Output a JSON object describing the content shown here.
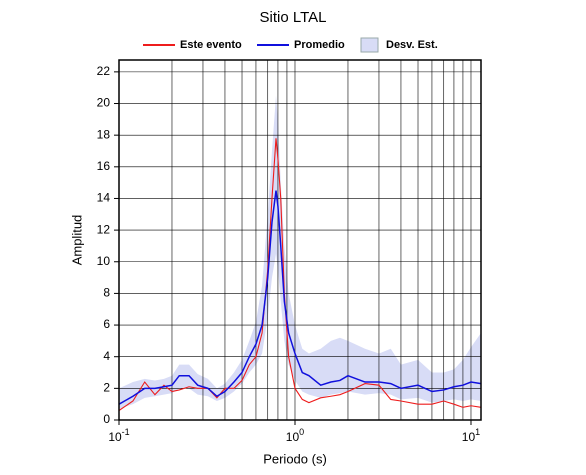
{
  "chart_data": {
    "type": "line",
    "title": "Sitio LTAL",
    "x_label": "Periodo (s)",
    "y_label": "Amplitud",
    "xscale": "log",
    "x": [
      0.1,
      0.12,
      0.14,
      0.16,
      0.18,
      0.2,
      0.22,
      0.25,
      0.28,
      0.32,
      0.36,
      0.4,
      0.45,
      0.5,
      0.55,
      0.6,
      0.65,
      0.7,
      0.74,
      0.78,
      0.8,
      0.83,
      0.87,
      0.92,
      1.0,
      1.1,
      1.2,
      1.4,
      1.6,
      1.8,
      2.0,
      2.5,
      3.0,
      3.5,
      4,
      5,
      6,
      7,
      8,
      9,
      10,
      11.4
    ],
    "series": [
      {
        "name": "Este evento",
        "color": "#ee1c1c",
        "values": [
          0.6,
          1.2,
          2.4,
          1.6,
          2.2,
          1.8,
          1.9,
          2.1,
          2.0,
          2.0,
          1.4,
          2.0,
          2.0,
          2.5,
          3.5,
          4.0,
          5.5,
          9.5,
          14,
          17.8,
          16.5,
          14,
          8,
          4,
          2.0,
          1.3,
          1.1,
          1.4,
          1.5,
          1.6,
          1.8,
          2.3,
          2.2,
          1.3,
          1.2,
          1.0,
          1.0,
          1.2,
          1.0,
          0.8,
          0.9,
          0.8
        ]
      },
      {
        "name": "Promedio",
        "color": "#1010dd",
        "values": [
          1.0,
          1.5,
          2.0,
          2.0,
          2.1,
          2.2,
          2.8,
          2.8,
          2.2,
          2.0,
          1.5,
          1.8,
          2.4,
          3.0,
          4.0,
          4.8,
          6.0,
          9.0,
          12.5,
          14.5,
          13.5,
          11,
          7.5,
          5.5,
          4.2,
          3.0,
          2.8,
          2.2,
          2.4,
          2.5,
          2.8,
          2.4,
          2.4,
          2.3,
          2.0,
          2.2,
          1.8,
          1.9,
          2.1,
          2.2,
          2.4,
          2.3
        ]
      }
    ],
    "band": {
      "name": "Desv. Est.",
      "color": "#d8dcf6",
      "lower": [
        0.7,
        1.0,
        1.4,
        1.5,
        1.6,
        1.7,
        2.0,
        2.0,
        1.6,
        1.5,
        1.2,
        1.4,
        1.8,
        2.3,
        3.0,
        3.5,
        4.2,
        6.5,
        9,
        10.5,
        9.5,
        7.5,
        5,
        3.5,
        2.5,
        1.8,
        1.6,
        1.4,
        1.6,
        1.7,
        1.8,
        1.6,
        1.7,
        1.6,
        1.3,
        1.4,
        1.1,
        1.2,
        1.3,
        1.2,
        1.3,
        1.2
      ],
      "upper": [
        2.0,
        2.4,
        2.6,
        2.5,
        2.6,
        2.8,
        3.5,
        3.5,
        2.9,
        2.6,
        2.0,
        2.3,
        3.0,
        3.8,
        5.0,
        6.2,
        8.5,
        13,
        17,
        20.5,
        19,
        15,
        11,
        8,
        6,
        4.5,
        4.2,
        4.5,
        5,
        5.2,
        5,
        4.5,
        4.2,
        4.5,
        3.5,
        3.8,
        3,
        3,
        3.2,
        3.8,
        4.6,
        5.5
      ]
    },
    "xlim": [
      0.1,
      11.4
    ],
    "ylim": [
      0,
      22.75
    ],
    "xticks": [
      {
        "value": 0.1,
        "label": "10",
        "exponent": "-1"
      },
      {
        "value": 1,
        "label": "10",
        "exponent": "0"
      },
      {
        "value": 10,
        "label": "10",
        "exponent": "1"
      }
    ],
    "xgrid_minor": [
      0.2,
      0.3,
      0.4,
      0.5,
      0.6,
      0.7,
      0.8,
      0.9,
      2,
      3,
      4,
      5,
      6,
      7,
      8,
      9
    ],
    "yticks": [
      0,
      2,
      4,
      6,
      8,
      10,
      12,
      14,
      16,
      18,
      20,
      22
    ],
    "grid": true
  }
}
